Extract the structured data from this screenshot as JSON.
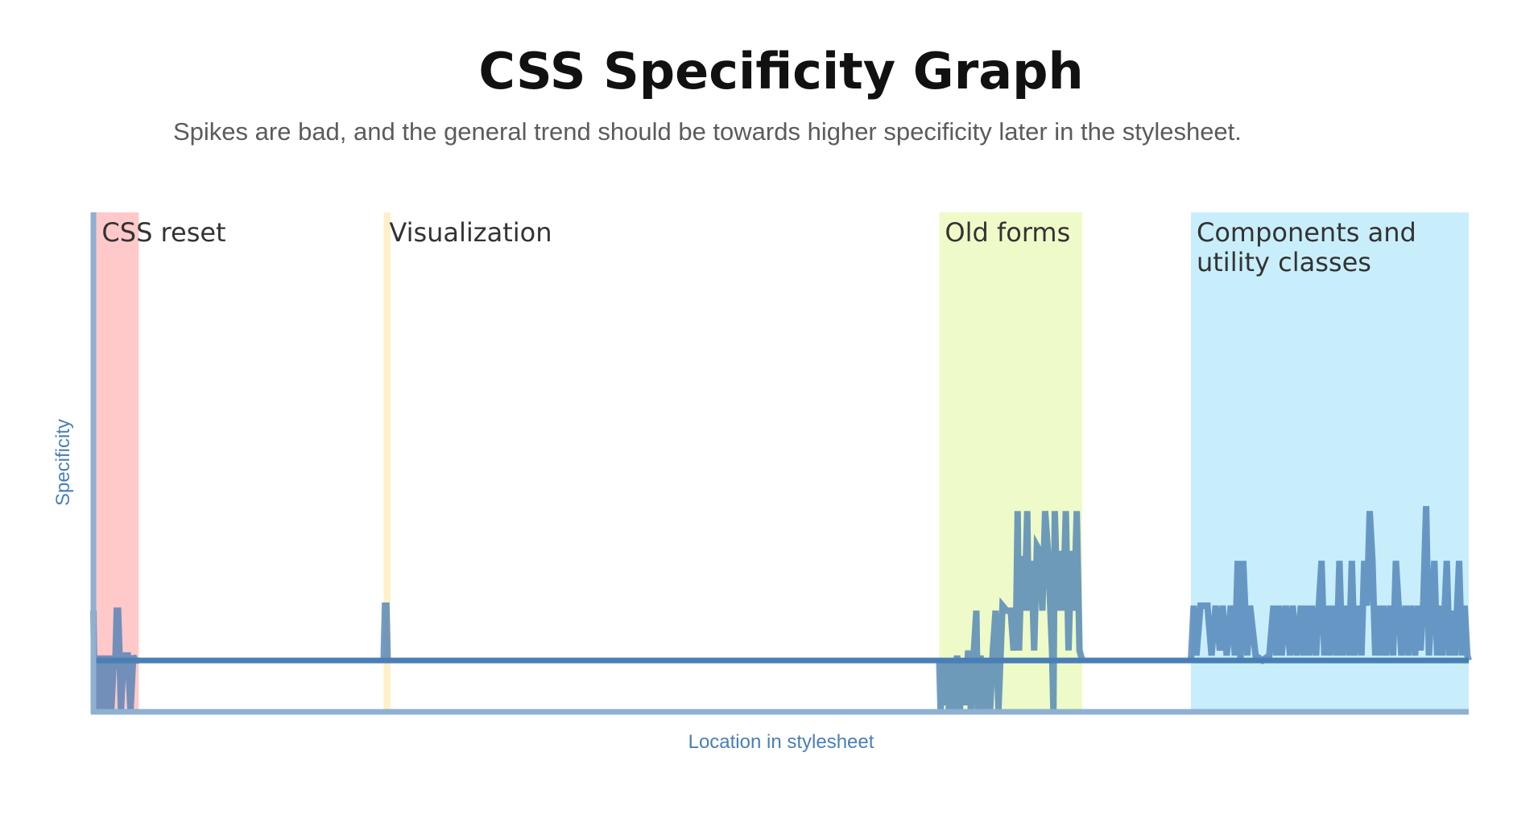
{
  "chart_data": {
    "type": "line",
    "title": "CSS Specificity Graph",
    "subtitle": "Spikes are bad, and the general trend should be towards higher specificity later in the stylesheet.",
    "xlabel": "Location in stylesheet",
    "ylabel": "Specificity",
    "x_range": [
      0,
      1000
    ],
    "ylim": [
      0,
      500
    ],
    "grid": false,
    "baseline_value": 50,
    "regions": [
      {
        "label": "CSS reset",
        "x_start": 2,
        "x_end": 33,
        "color": "#ffc9c9"
      },
      {
        "label": "Visualization",
        "x_start": 211,
        "x_end": 216,
        "color": "#fff0c8"
      },
      {
        "label": "Old forms",
        "x_start": 615,
        "x_end": 719,
        "color": "#eefbc9"
      },
      {
        "label": "Components and utility classes",
        "label_lines": [
          "Components and",
          "utility classes"
        ],
        "x_start": 798,
        "x_end": 1000,
        "color": "#c8eefb"
      }
    ],
    "series": [
      {
        "color": "#4a7fb5",
        "points": [
          [
            0,
            100
          ],
          [
            1,
            0
          ],
          [
            2,
            0
          ],
          [
            4,
            55
          ],
          [
            5,
            0
          ],
          [
            7,
            55
          ],
          [
            9,
            0
          ],
          [
            11,
            55
          ],
          [
            13,
            0
          ],
          [
            15,
            55
          ],
          [
            16,
            50
          ],
          [
            17,
            100
          ],
          [
            18,
            100
          ],
          [
            19,
            55
          ],
          [
            20,
            0
          ],
          [
            22,
            55
          ],
          [
            25,
            55
          ],
          [
            27,
            0
          ],
          [
            29,
            55
          ],
          [
            30,
            50
          ],
          [
            33,
            50
          ],
          [
            211,
            50
          ],
          [
            212,
            105
          ],
          [
            213,
            105
          ],
          [
            214,
            50
          ],
          [
            615,
            50
          ],
          [
            616,
            0
          ],
          [
            618,
            50
          ],
          [
            619,
            5
          ],
          [
            621,
            50
          ],
          [
            622,
            0
          ],
          [
            624,
            50
          ],
          [
            626,
            0
          ],
          [
            628,
            55
          ],
          [
            630,
            0
          ],
          [
            632,
            50
          ],
          [
            634,
            5
          ],
          [
            636,
            60
          ],
          [
            638,
            0
          ],
          [
            640,
            55
          ],
          [
            642,
            100
          ],
          [
            643,
            0
          ],
          [
            645,
            55
          ],
          [
            647,
            0
          ],
          [
            650,
            50
          ],
          [
            652,
            0
          ],
          [
            654,
            60
          ],
          [
            656,
            100
          ],
          [
            658,
            0
          ],
          [
            661,
            105
          ],
          [
            664,
            100
          ],
          [
            667,
            100
          ],
          [
            669,
            60
          ],
          [
            671,
            100
          ],
          [
            672,
            200
          ],
          [
            673,
            60
          ],
          [
            675,
            155
          ],
          [
            677,
            100
          ],
          [
            679,
            200
          ],
          [
            680,
            100
          ],
          [
            682,
            150
          ],
          [
            684,
            60
          ],
          [
            686,
            165
          ],
          [
            688,
            160
          ],
          [
            690,
            100
          ],
          [
            692,
            200
          ],
          [
            694,
            160
          ],
          [
            697,
            60
          ],
          [
            698,
            0
          ],
          [
            699,
            200
          ],
          [
            701,
            100
          ],
          [
            703,
            160
          ],
          [
            705,
            100
          ],
          [
            707,
            200
          ],
          [
            709,
            60
          ],
          [
            711,
            160
          ],
          [
            713,
            100
          ],
          [
            715,
            200
          ],
          [
            717,
            60
          ],
          [
            719,
            50
          ],
          [
            798,
            50
          ],
          [
            800,
            105
          ],
          [
            802,
            55
          ],
          [
            805,
            105
          ],
          [
            810,
            105
          ],
          [
            813,
            55
          ],
          [
            816,
            105
          ],
          [
            819,
            60
          ],
          [
            821,
            105
          ],
          [
            824,
            55
          ],
          [
            827,
            105
          ],
          [
            830,
            55
          ],
          [
            832,
            150
          ],
          [
            834,
            50
          ],
          [
            836,
            150
          ],
          [
            839,
            55
          ],
          [
            841,
            105
          ],
          [
            845,
            55
          ],
          [
            850,
            50
          ],
          [
            855,
            55
          ],
          [
            858,
            105
          ],
          [
            860,
            55
          ],
          [
            862,
            105
          ],
          [
            864,
            55
          ],
          [
            867,
            105
          ],
          [
            870,
            55
          ],
          [
            872,
            105
          ],
          [
            875,
            55
          ],
          [
            878,
            105
          ],
          [
            880,
            55
          ],
          [
            882,
            105
          ],
          [
            884,
            55
          ],
          [
            886,
            105
          ],
          [
            889,
            55
          ],
          [
            891,
            105
          ],
          [
            893,
            150
          ],
          [
            895,
            55
          ],
          [
            897,
            105
          ],
          [
            899,
            55
          ],
          [
            901,
            105
          ],
          [
            904,
            55
          ],
          [
            906,
            150
          ],
          [
            908,
            55
          ],
          [
            911,
            105
          ],
          [
            913,
            55
          ],
          [
            915,
            150
          ],
          [
            917,
            55
          ],
          [
            920,
            105
          ],
          [
            922,
            55
          ],
          [
            924,
            150
          ],
          [
            926,
            105
          ],
          [
            928,
            200
          ],
          [
            930,
            150
          ],
          [
            932,
            55
          ],
          [
            934,
            105
          ],
          [
            936,
            55
          ],
          [
            938,
            105
          ],
          [
            940,
            55
          ],
          [
            943,
            105
          ],
          [
            945,
            55
          ],
          [
            947,
            150
          ],
          [
            949,
            105
          ],
          [
            951,
            55
          ],
          [
            954,
            105
          ],
          [
            956,
            55
          ],
          [
            958,
            105
          ],
          [
            961,
            55
          ],
          [
            963,
            105
          ],
          [
            965,
            60
          ],
          [
            967,
            110
          ],
          [
            969,
            205
          ],
          [
            971,
            55
          ],
          [
            973,
            105
          ],
          [
            975,
            150
          ],
          [
            977,
            55
          ],
          [
            979,
            105
          ],
          [
            981,
            55
          ],
          [
            984,
            150
          ],
          [
            986,
            55
          ],
          [
            988,
            100
          ],
          [
            990,
            55
          ],
          [
            993,
            150
          ],
          [
            995,
            55
          ],
          [
            997,
            105
          ],
          [
            999,
            55
          ],
          [
            1000,
            50
          ]
        ]
      }
    ]
  }
}
